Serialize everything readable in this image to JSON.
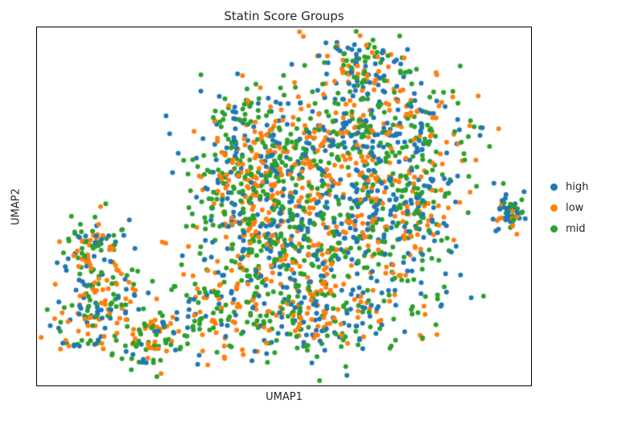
{
  "chart_data": {
    "type": "scatter",
    "title": "Statin Score Groups",
    "xlabel": "UMAP1",
    "ylabel": "UMAP2",
    "grid": false,
    "axis_ticks": "none",
    "legend_position": "right-outside",
    "background_color": "#ffffff",
    "spine_color": "#000000",
    "marker_radius": 3,
    "seed": 42,
    "coords_note": "cluster centers/stds are normalized fractions of plot box; x rightward, y downward",
    "series": [
      {
        "name": "high",
        "color": "#1f77b4",
        "weight": 0.32
      },
      {
        "name": "low",
        "color": "#ff7f0e",
        "weight": 0.3
      },
      {
        "name": "mid",
        "color": "#2ca02c",
        "weight": 0.38
      }
    ],
    "clusters": [
      {
        "label": "main-core",
        "cx": 0.58,
        "cy": 0.52,
        "sx": 0.12,
        "sy": 0.14,
        "n": 700
      },
      {
        "label": "main-upper-right",
        "cx": 0.68,
        "cy": 0.28,
        "sx": 0.09,
        "sy": 0.09,
        "n": 300
      },
      {
        "label": "main-top-spur",
        "cx": 0.66,
        "cy": 0.1,
        "sx": 0.05,
        "sy": 0.045,
        "n": 100
      },
      {
        "label": "main-upper-left",
        "cx": 0.44,
        "cy": 0.33,
        "sx": 0.06,
        "sy": 0.09,
        "n": 220
      },
      {
        "label": "main-left-arm",
        "cx": 0.42,
        "cy": 0.55,
        "sx": 0.05,
        "sy": 0.1,
        "n": 180
      },
      {
        "label": "main-bottom",
        "cx": 0.56,
        "cy": 0.8,
        "sx": 0.11,
        "sy": 0.07,
        "n": 260
      },
      {
        "label": "main-right-edge",
        "cx": 0.76,
        "cy": 0.5,
        "sx": 0.05,
        "sy": 0.12,
        "n": 160
      },
      {
        "label": "bottom-left-bridge",
        "cx": 0.36,
        "cy": 0.8,
        "sx": 0.05,
        "sy": 0.06,
        "n": 90
      },
      {
        "label": "left-cluster-upper",
        "cx": 0.105,
        "cy": 0.63,
        "sx": 0.035,
        "sy": 0.055,
        "n": 110
      },
      {
        "label": "left-cluster-lower",
        "cx": 0.13,
        "cy": 0.8,
        "sx": 0.05,
        "sy": 0.06,
        "n": 140
      },
      {
        "label": "left-cluster-tail",
        "cx": 0.23,
        "cy": 0.88,
        "sx": 0.035,
        "sy": 0.04,
        "n": 70
      },
      {
        "label": "far-right-island",
        "cx": 0.955,
        "cy": 0.52,
        "sx": 0.016,
        "sy": 0.024,
        "n": 55
      }
    ]
  }
}
